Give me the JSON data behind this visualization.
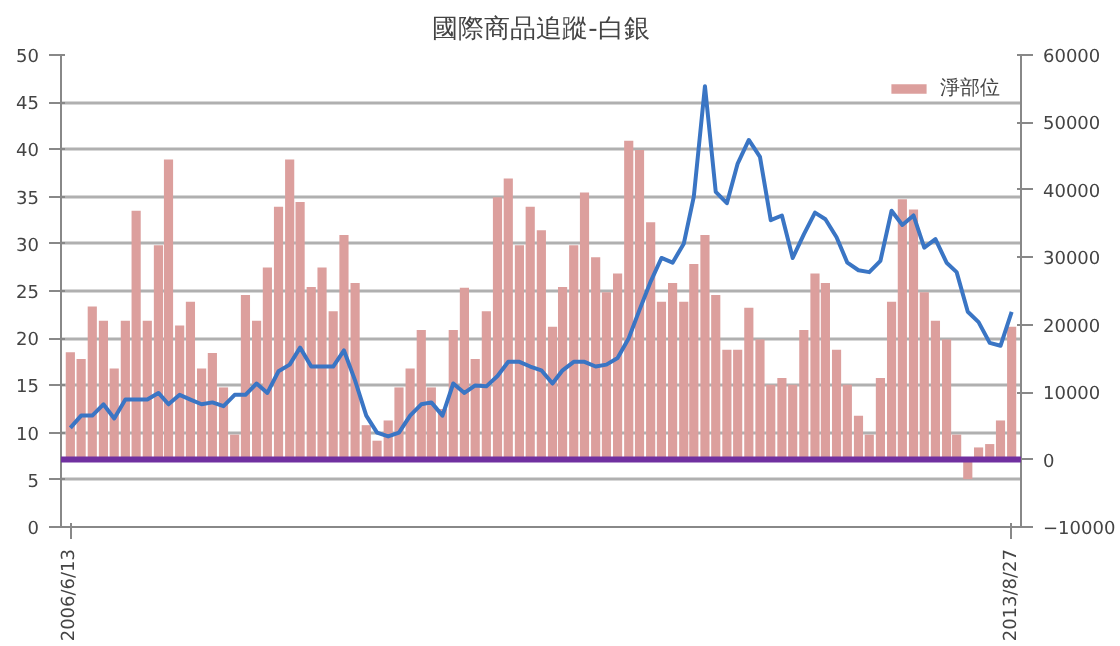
{
  "chart_data": {
    "type": "bar",
    "title": "國際商品追蹤-白銀",
    "x": [
      "2006-06",
      "2006-07",
      "2006-08",
      "2006-09",
      "2006-10",
      "2006-11",
      "2006-12",
      "2007-01",
      "2007-02",
      "2007-03",
      "2007-04",
      "2007-05",
      "2007-06",
      "2007-07",
      "2007-08",
      "2007-09",
      "2007-10",
      "2007-11",
      "2007-12",
      "2008-01",
      "2008-02",
      "2008-03",
      "2008-04",
      "2008-05",
      "2008-06",
      "2008-07",
      "2008-08",
      "2008-09",
      "2008-10",
      "2008-11",
      "2008-12",
      "2009-01",
      "2009-02",
      "2009-03",
      "2009-04",
      "2009-05",
      "2009-06",
      "2009-07",
      "2009-08",
      "2009-09",
      "2009-10",
      "2009-11",
      "2009-12",
      "2010-01",
      "2010-02",
      "2010-03",
      "2010-04",
      "2010-05",
      "2010-06",
      "2010-07",
      "2010-08",
      "2010-09",
      "2010-10",
      "2010-11",
      "2010-12",
      "2011-01",
      "2011-02",
      "2011-03",
      "2011-04",
      "2011-05",
      "2011-06",
      "2011-07",
      "2011-08",
      "2011-09",
      "2011-10",
      "2011-11",
      "2011-12",
      "2012-01",
      "2012-02",
      "2012-03",
      "2012-04",
      "2012-05",
      "2012-06",
      "2012-07",
      "2012-08",
      "2012-09",
      "2012-10",
      "2012-11",
      "2012-12",
      "2013-01",
      "2013-02",
      "2013-03",
      "2013-04",
      "2013-05",
      "2013-06",
      "2013-07",
      "2013-08"
    ],
    "series": [
      {
        "name": "淨部位",
        "axis": "y2",
        "color": "#dc9f9d",
        "values": [
          15900,
          14900,
          22700,
          20600,
          13500,
          20600,
          36900,
          20600,
          31800,
          44500,
          19900,
          23400,
          13500,
          15800,
          10700,
          3700,
          24400,
          20600,
          28500,
          37500,
          44500,
          38200,
          25600,
          28500,
          22000,
          33300,
          26200,
          5100,
          2800,
          5800,
          10700,
          13500,
          19200,
          10700,
          7500,
          19200,
          25500,
          14900,
          22000,
          38900,
          41700,
          31800,
          37500,
          34000,
          19700,
          25600,
          31800,
          39600,
          30000,
          24800,
          27600,
          47300,
          45900,
          35200,
          23400,
          26200,
          23400,
          29000,
          33300,
          24400,
          16300,
          16300,
          22500,
          17800,
          11100,
          12100,
          11100,
          19200,
          27600,
          26200,
          16300,
          11100,
          6500,
          3700,
          12100,
          23400,
          38600,
          37100,
          24800,
          20600,
          17800,
          3700,
          -2900,
          1800,
          2300,
          5800,
          19700
        ]
      },
      {
        "type": "line",
        "color": "#3a75c4",
        "values": [
          10.5,
          11.8,
          11.8,
          13,
          11.5,
          13.5,
          13.5,
          13.5,
          14.2,
          13,
          14,
          13.5,
          13,
          13.2,
          12.8,
          14,
          14,
          15.2,
          14.2,
          16.5,
          17.2,
          19,
          17,
          17,
          17,
          18.7,
          15.5,
          11.8,
          10,
          9.6,
          10,
          11.8,
          13,
          13.2,
          11.8,
          15.2,
          14.2,
          15,
          14.9,
          16,
          17.5,
          17.5,
          17,
          16.6,
          15.2,
          16.6,
          17.5,
          17.5,
          17,
          17.2,
          17.9,
          20,
          23,
          26,
          28.5,
          28,
          30,
          35,
          46.7,
          35.5,
          34.3,
          38.5,
          41,
          39.2,
          32.5,
          33,
          28.5,
          31,
          33.3,
          32.6,
          30.7,
          28,
          27.2,
          27,
          28.2,
          33.5,
          32,
          33,
          29.6,
          30.5,
          28,
          27,
          22.8,
          21.7,
          19.5,
          19.2,
          22.8
        ]
      }
    ],
    "xlim": [
      "2006-05-20",
      "2013-09-10"
    ],
    "xticks": [
      {
        "value": "2006-06",
        "label": "2006/6/13"
      },
      {
        "value": "2013-08",
        "label": "2013/8/27"
      }
    ],
    "ylim": [
      0,
      50
    ],
    "yticks": [
      0,
      5,
      10,
      15,
      20,
      25,
      30,
      35,
      40,
      45,
      50
    ],
    "y2lim": [
      -10000,
      60000
    ],
    "y2ticks": [
      -10000,
      0,
      10000,
      20000,
      30000,
      40000,
      50000,
      60000
    ],
    "ref_lines": [
      {
        "axis": "y2",
        "value": 0,
        "color": "#7030a0"
      }
    ],
    "grid": "y",
    "legend": "top right",
    "line_style": "solid",
    "marker": "none"
  }
}
